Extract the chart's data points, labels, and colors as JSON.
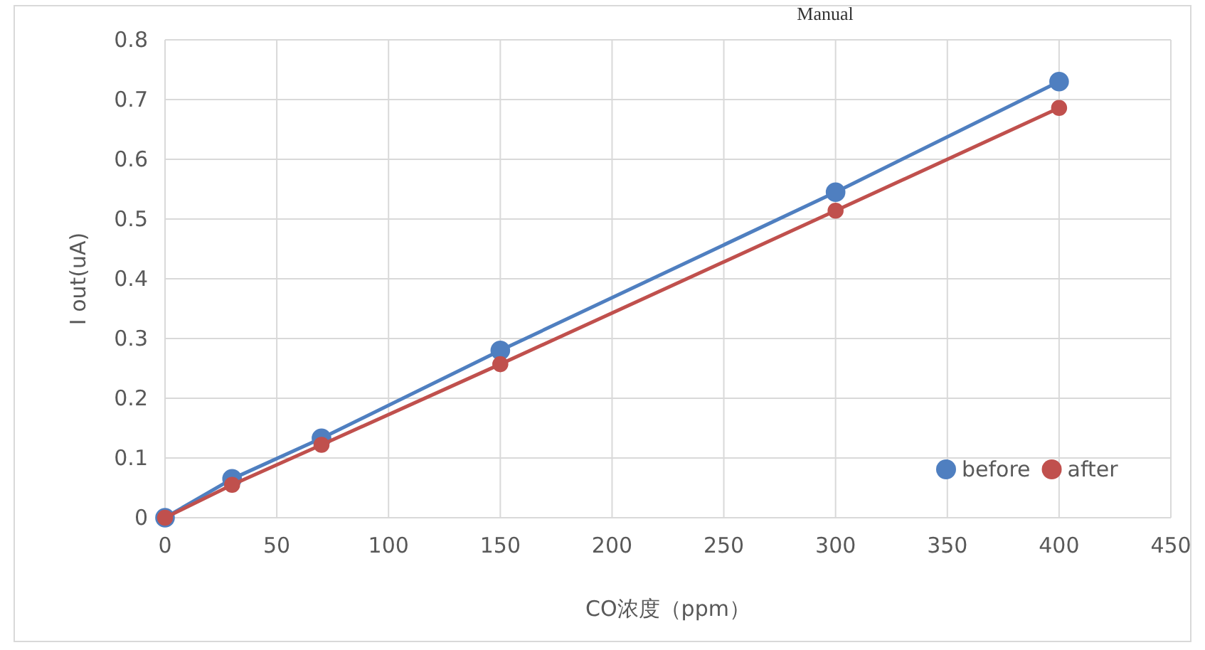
{
  "chart_data": {
    "type": "line",
    "xlabel": "CO浓度（ppm）",
    "ylabel": "I out(uA)",
    "annotations": [
      "Manual"
    ],
    "x": [
      0,
      30,
      70,
      150,
      300,
      400
    ],
    "series": [
      {
        "name": "before",
        "color": "#4f7fc0",
        "values": [
          0,
          0.065,
          0.133,
          0.28,
          0.545,
          0.73
        ]
      },
      {
        "name": "after",
        "color": "#c0504d",
        "values": [
          0,
          0.055,
          0.122,
          0.257,
          0.514,
          0.686
        ]
      }
    ],
    "xlim": [
      0,
      450
    ],
    "xticks": [
      0,
      50,
      100,
      150,
      200,
      250,
      300,
      350,
      400,
      450
    ],
    "ylim": [
      0,
      0.8
    ],
    "yticks": [
      0,
      0.1,
      0.2,
      0.3,
      0.4,
      0.5,
      0.6,
      0.7,
      0.8
    ],
    "grid": true,
    "legend": "bottom right",
    "marker": "circle",
    "line_style": "solid"
  }
}
